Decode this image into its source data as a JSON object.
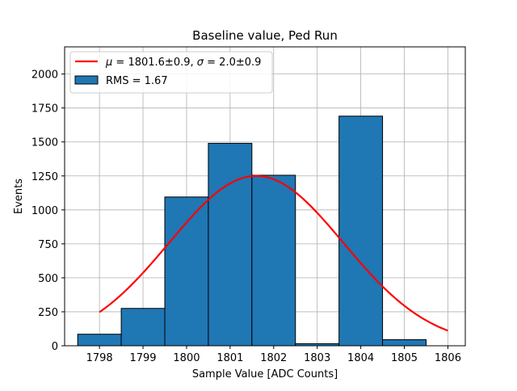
{
  "chart_data": {
    "type": "bar",
    "title": "Baseline value, Ped Run",
    "xlabel": "Sample Value [ADC Counts]",
    "ylabel": "Events",
    "xlim": [
      1797.2,
      1806.4
    ],
    "ylim": [
      0,
      2200
    ],
    "grid": true,
    "legend_position": "top-left",
    "xticks": [
      1798,
      1799,
      1800,
      1801,
      1802,
      1803,
      1804,
      1805,
      1806
    ],
    "yticks": [
      0,
      250,
      500,
      750,
      1000,
      1250,
      1500,
      1750,
      2000
    ],
    "histogram": {
      "name": "RMS = 1.67",
      "color": "#1f77b4",
      "edge_color": "#000000",
      "bin_width": 1,
      "centers": [
        1798,
        1799,
        1800,
        1801,
        1802,
        1803,
        1804,
        1805
      ],
      "values": [
        85,
        275,
        1095,
        1490,
        1255,
        15,
        1690,
        45
      ]
    },
    "fit": {
      "name": "μ = 1801.6±0.9, σ = 2.0±0.9",
      "legend_math": [
        "μ",
        " = 1801.6±0.9, ",
        "σ",
        " = 2.0±0.9"
      ],
      "color": "#ff0000",
      "type": "gaussian",
      "mu": 1801.6,
      "sigma": 2.0,
      "amplitude": 1250,
      "x_range": [
        1798,
        1806
      ]
    }
  }
}
